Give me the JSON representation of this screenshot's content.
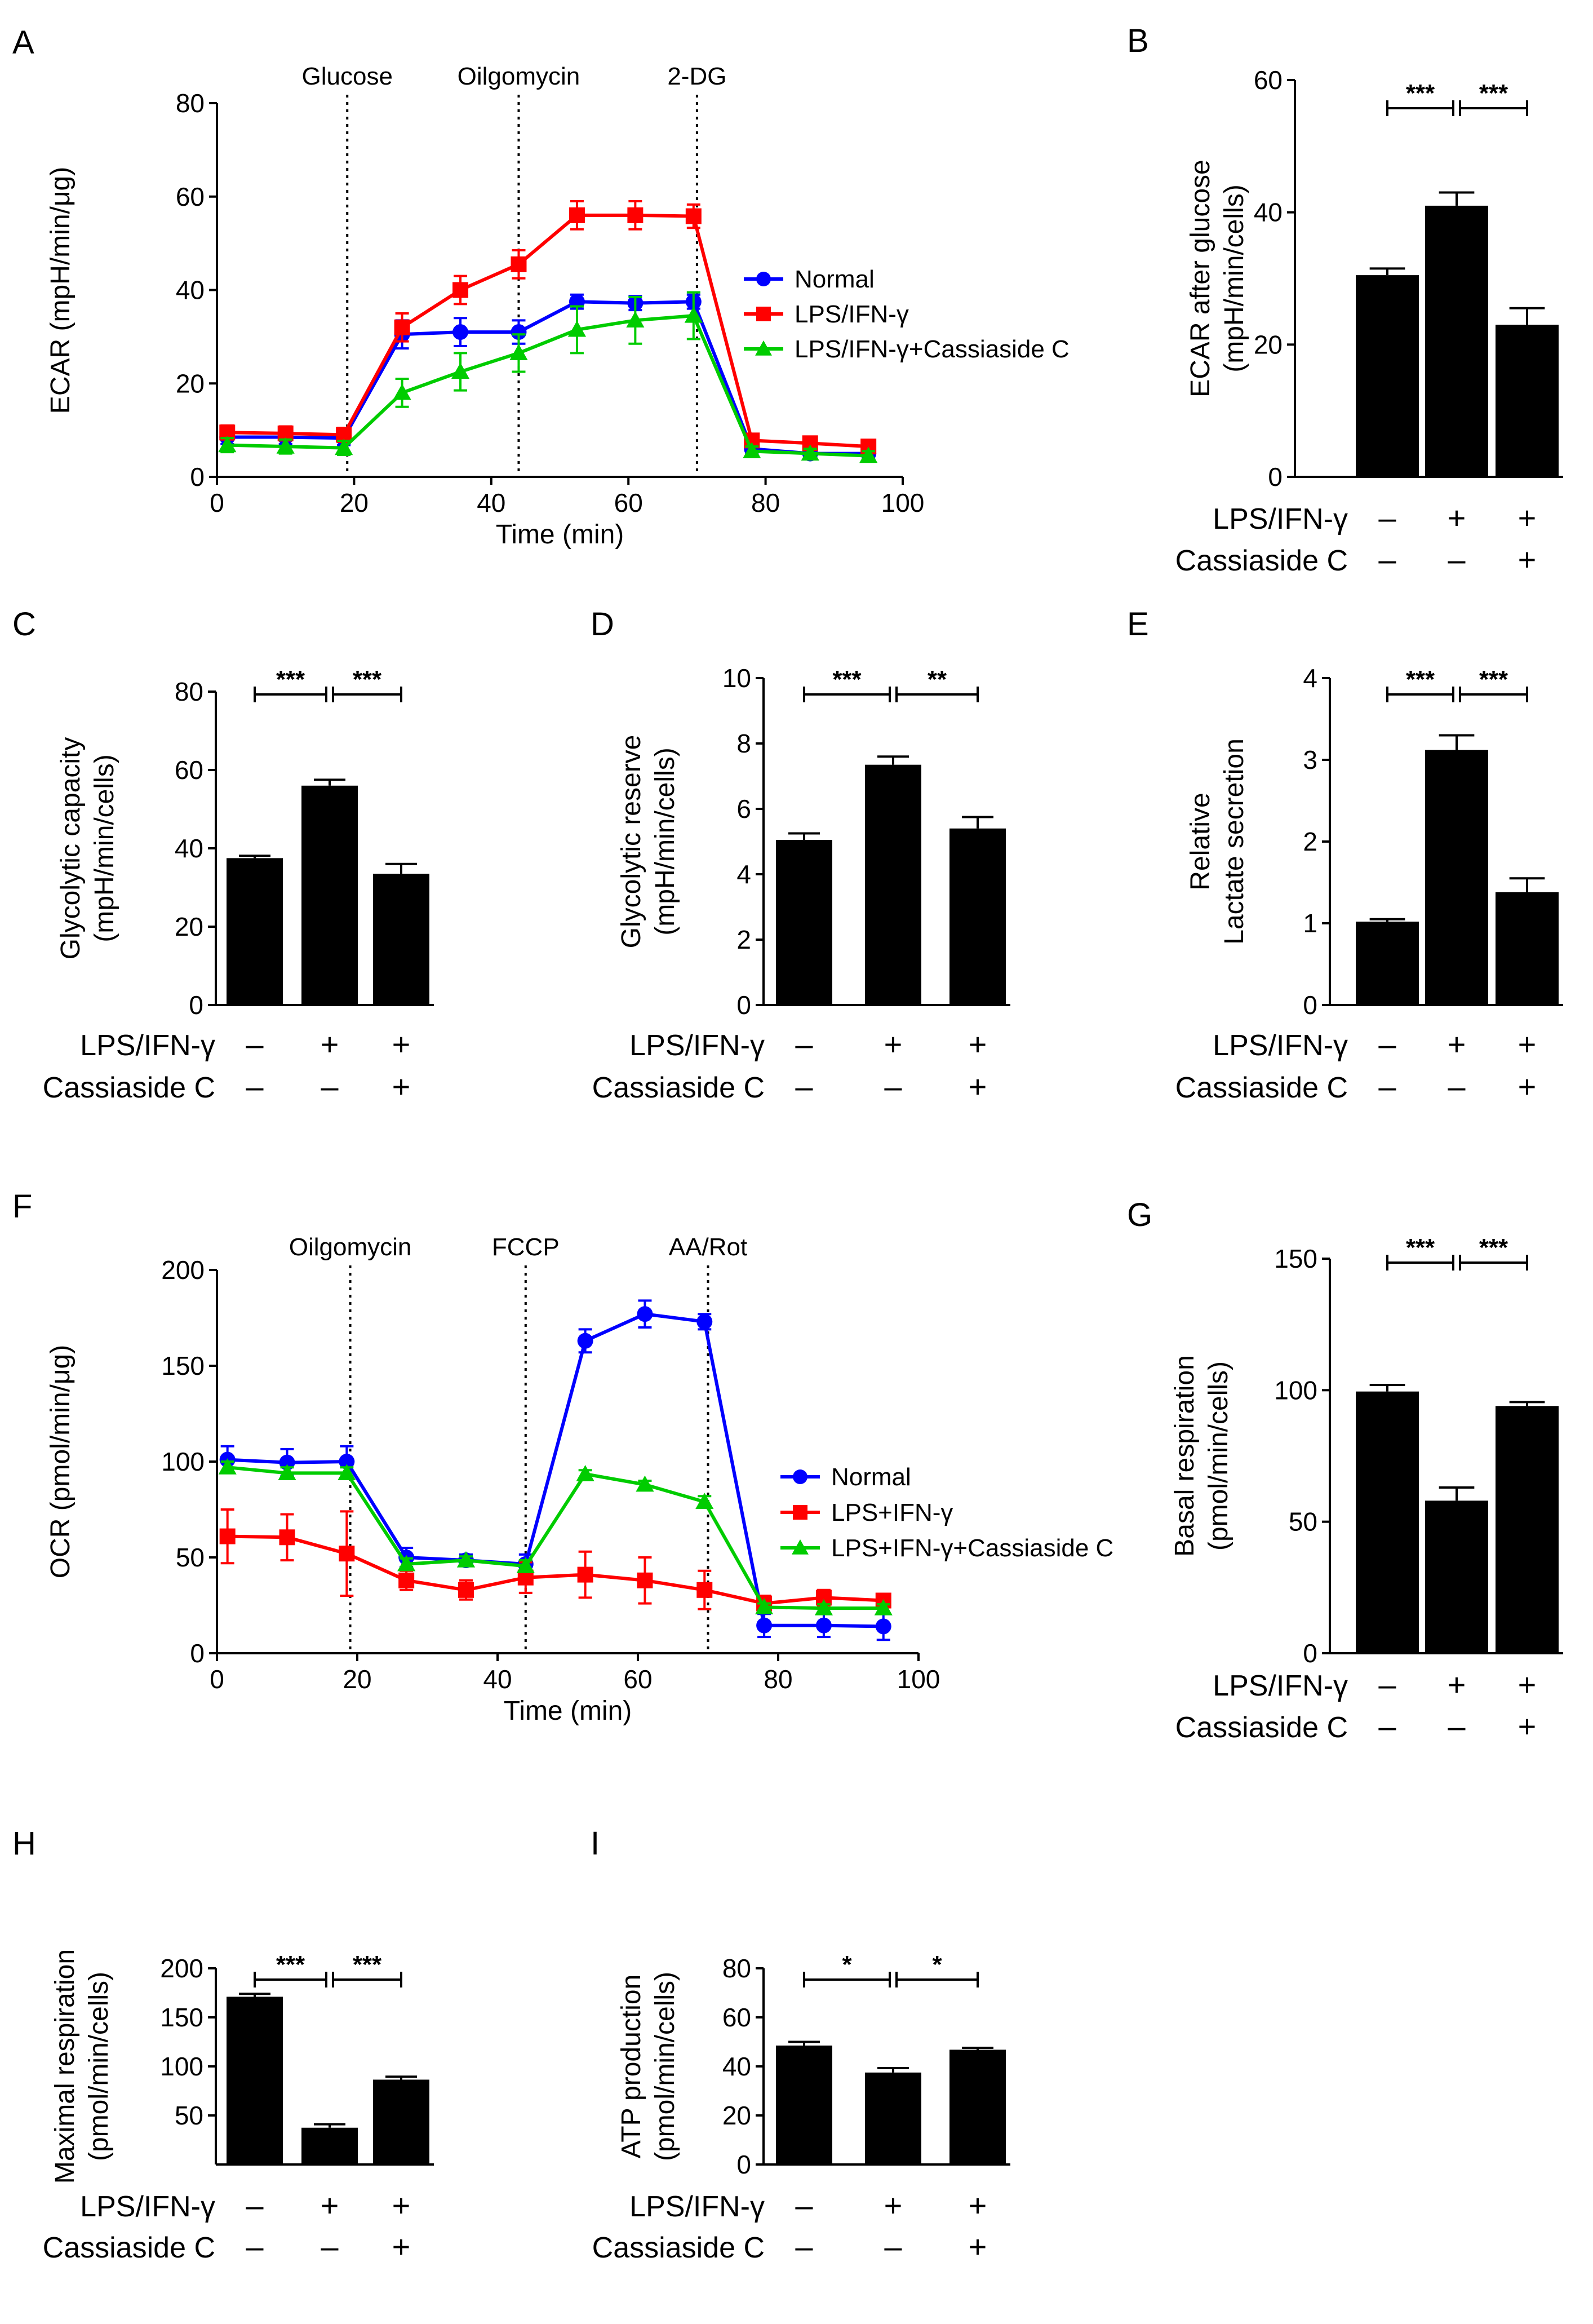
{
  "chart_data": [
    {
      "id": "A",
      "panel": "A",
      "type": "line",
      "ylabel": "ECAR (mpH/min/μg)",
      "xlabel": "Time (min)",
      "xlim": [
        0,
        100
      ],
      "ylim": [
        0,
        80
      ],
      "xticks": [
        0,
        20,
        40,
        60,
        80,
        100
      ],
      "yticks": [
        0,
        20,
        40,
        60,
        80
      ],
      "events": [
        {
          "x": 19,
          "label": "Glucose"
        },
        {
          "x": 44,
          "label": "Oilgomycin"
        },
        {
          "x": 70,
          "label": "2-DG"
        }
      ],
      "x": [
        1.5,
        10,
        18.5,
        27,
        35.5,
        44,
        52.5,
        61,
        69.5,
        78,
        86.5,
        95
      ],
      "series": [
        {
          "name": "Normal",
          "color": "#0000ff",
          "marker": "circle",
          "values": [
            8.5,
            8.5,
            8.3,
            30.5,
            31,
            31,
            37.5,
            37.2,
            37.5,
            6,
            5,
            5
          ],
          "err": [
            1.5,
            1.5,
            1.5,
            3,
            3,
            2.5,
            1.5,
            1.5,
            1.5,
            1,
            1,
            1
          ]
        },
        {
          "name": "LPS/IFN-γ",
          "color": "#ff0000",
          "marker": "square",
          "values": [
            9.5,
            9.3,
            9.0,
            32,
            40,
            45.5,
            56,
            56,
            55.8,
            7.8,
            7.2,
            6.5
          ],
          "err": [
            1.5,
            1.5,
            1.5,
            3,
            3,
            3,
            3,
            3,
            2.5,
            1,
            1,
            1
          ]
        },
        {
          "name": "LPS/IFN-γ+Cassiaside C",
          "color": "#00cc00",
          "marker": "triangle",
          "values": [
            6.8,
            6.5,
            6.2,
            18,
            22.5,
            26.5,
            31.5,
            33.5,
            34.5,
            5.5,
            5,
            4.5
          ],
          "err": [
            1.5,
            1.5,
            1.5,
            3,
            4,
            4,
            5,
            5,
            5,
            1,
            1,
            1
          ]
        }
      ]
    },
    {
      "id": "B",
      "panel": "B",
      "type": "bar",
      "ylabel_lines": [
        "ECAR after glucose",
        "(mpH/min/cells)"
      ],
      "ylim": [
        0,
        60
      ],
      "yticks": [
        0,
        20,
        40,
        60
      ],
      "values": [
        30.5,
        41,
        23
      ],
      "errors": [
        1,
        2,
        2.5
      ],
      "significance": [
        {
          "from": 0,
          "to": 1,
          "label": "***"
        },
        {
          "from": 1,
          "to": 2,
          "label": "***"
        }
      ],
      "conditions": [
        {
          "label": "LPS/IFN-γ",
          "signs": [
            "–",
            "+",
            "+"
          ]
        },
        {
          "label": "Cassiaside C",
          "signs": [
            "–",
            "–",
            "+"
          ]
        }
      ]
    },
    {
      "id": "C",
      "panel": "C",
      "type": "bar",
      "ylabel_lines": [
        "Glycolytic capacity",
        "(mpH/min/cells)"
      ],
      "ylim": [
        0,
        80
      ],
      "yticks": [
        0,
        20,
        40,
        60,
        80
      ],
      "values": [
        37.5,
        56,
        33.5
      ],
      "errors": [
        0.6,
        1.5,
        2.5
      ],
      "significance": [
        {
          "from": 0,
          "to": 1,
          "label": "***"
        },
        {
          "from": 1,
          "to": 2,
          "label": "***"
        }
      ],
      "conditions": [
        {
          "label": "LPS/IFN-γ",
          "signs": [
            "–",
            "+",
            "+"
          ]
        },
        {
          "label": "Cassiaside C",
          "signs": [
            "–",
            "–",
            "+"
          ]
        }
      ]
    },
    {
      "id": "D",
      "panel": "D",
      "type": "bar",
      "ylabel_lines": [
        "Glycolytic reserve",
        "(mpH/min/cells)"
      ],
      "ylim": [
        0,
        10
      ],
      "yticks": [
        0,
        2,
        4,
        6,
        8,
        10
      ],
      "values": [
        5.05,
        7.35,
        5.4
      ],
      "errors": [
        0.2,
        0.25,
        0.35
      ],
      "significance": [
        {
          "from": 0,
          "to": 1,
          "label": "***"
        },
        {
          "from": 1,
          "to": 2,
          "label": "**"
        }
      ],
      "conditions": [
        {
          "label": "LPS/IFN-γ",
          "signs": [
            "–",
            "+",
            "+"
          ]
        },
        {
          "label": "Cassiaside C",
          "signs": [
            "–",
            "–",
            "+"
          ]
        }
      ]
    },
    {
      "id": "E",
      "panel": "E",
      "type": "bar",
      "ylabel_lines": [
        "Relative",
        "Lactate secretion"
      ],
      "ylim": [
        0,
        4
      ],
      "yticks": [
        0,
        1,
        2,
        3,
        4
      ],
      "values": [
        1.02,
        3.12,
        1.38
      ],
      "errors": [
        0.03,
        0.18,
        0.17
      ],
      "significance": [
        {
          "from": 0,
          "to": 1,
          "label": "***"
        },
        {
          "from": 1,
          "to": 2,
          "label": "***"
        }
      ],
      "conditions": [
        {
          "label": "LPS/IFN-γ",
          "signs": [
            "–",
            "+",
            "+"
          ]
        },
        {
          "label": "Cassiaside C",
          "signs": [
            "–",
            "–",
            "+"
          ]
        }
      ]
    },
    {
      "id": "F",
      "panel": "F",
      "type": "line",
      "ylabel": "OCR (pmol/min/μg)",
      "xlabel": "Time (min)",
      "xlim": [
        0,
        100
      ],
      "ylim": [
        0,
        200
      ],
      "xticks": [
        0,
        20,
        40,
        60,
        80,
        100
      ],
      "yticks": [
        0,
        50,
        100,
        150,
        200
      ],
      "events": [
        {
          "x": 19,
          "label": "Oilgomycin"
        },
        {
          "x": 44,
          "label": "FCCP"
        },
        {
          "x": 70,
          "label": "AA/Rot"
        }
      ],
      "x": [
        1.5,
        10,
        18.5,
        27,
        35.5,
        44,
        52.5,
        61,
        69.5,
        78,
        86.5,
        95
      ],
      "series": [
        {
          "name": "Normal",
          "color": "#0000ff",
          "marker": "circle",
          "values": [
            101,
            99.5,
            100,
            50,
            48.5,
            46.5,
            163,
            177,
            173,
            14.5,
            14.5,
            14
          ],
          "err": [
            7,
            7,
            8,
            5,
            3,
            5,
            6,
            7,
            4,
            6,
            6,
            7
          ]
        },
        {
          "name": "LPS+IFN-γ",
          "color": "#ff0000",
          "marker": "square",
          "values": [
            61,
            60.5,
            52,
            38,
            33,
            39.5,
            41,
            38,
            33,
            26,
            29,
            27.5
          ],
          "err": [
            14,
            12,
            22,
            5,
            5,
            8,
            12,
            12,
            10,
            4,
            4,
            3
          ]
        },
        {
          "name": "LPS+IFN-γ+Cassiaside C",
          "color": "#00cc00",
          "marker": "triangle",
          "values": [
            97,
            94,
            94,
            46.5,
            48.5,
            45.5,
            93.5,
            88,
            79,
            24,
            23.5,
            23.5
          ],
          "err": [
            3,
            3,
            3,
            3,
            2,
            3,
            2,
            2,
            3,
            2,
            2,
            2
          ]
        }
      ]
    },
    {
      "id": "G",
      "panel": "G",
      "type": "bar",
      "ylabel_lines": [
        "Basal respiration",
        "(pmol/min/cells)"
      ],
      "ylim": [
        0,
        150
      ],
      "yticks": [
        0,
        50,
        100,
        150
      ],
      "values": [
        99.5,
        58,
        94
      ],
      "errors": [
        2.5,
        5,
        1.5
      ],
      "significance": [
        {
          "from": 0,
          "to": 1,
          "label": "***"
        },
        {
          "from": 1,
          "to": 2,
          "label": "***"
        }
      ],
      "conditions": [
        {
          "label": "LPS/IFN-γ",
          "signs": [
            "–",
            "+",
            "+"
          ]
        },
        {
          "label": "Cassiaside C",
          "signs": [
            "–",
            "–",
            "+"
          ]
        }
      ]
    },
    {
      "id": "H",
      "panel": "H",
      "type": "bar",
      "ylabel_lines": [
        "Maximal respiration",
        "(pmol/min/cells)"
      ],
      "ylim": [
        0,
        200
      ],
      "yticks": [
        50,
        100,
        150,
        200
      ],
      "values": [
        171,
        37.5,
        86.5
      ],
      "errors": [
        3,
        3.5,
        3
      ],
      "significance": [
        {
          "from": 0,
          "to": 1,
          "label": "***"
        },
        {
          "from": 1,
          "to": 2,
          "label": "***"
        }
      ],
      "conditions": [
        {
          "label": "LPS/IFN-γ",
          "signs": [
            "–",
            "+",
            "+"
          ]
        },
        {
          "label": "Cassiaside C",
          "signs": [
            "–",
            "–",
            "+"
          ]
        }
      ]
    },
    {
      "id": "I",
      "panel": "I",
      "type": "bar",
      "ylabel_lines": [
        "ATP production",
        "(pmol/min/cells)"
      ],
      "ylim": [
        0,
        80
      ],
      "yticks": [
        0,
        20,
        40,
        60,
        80
      ],
      "values": [
        48.5,
        37.5,
        46.8
      ],
      "errors": [
        1.5,
        1.8,
        0.8
      ],
      "significance": [
        {
          "from": 0,
          "to": 1,
          "label": "*"
        },
        {
          "from": 1,
          "to": 2,
          "label": "*"
        }
      ],
      "conditions": [
        {
          "label": "LPS/IFN-γ",
          "signs": [
            "–",
            "+",
            "+"
          ]
        },
        {
          "label": "Cassiaside C",
          "signs": [
            "–",
            "–",
            "+"
          ]
        }
      ]
    }
  ]
}
